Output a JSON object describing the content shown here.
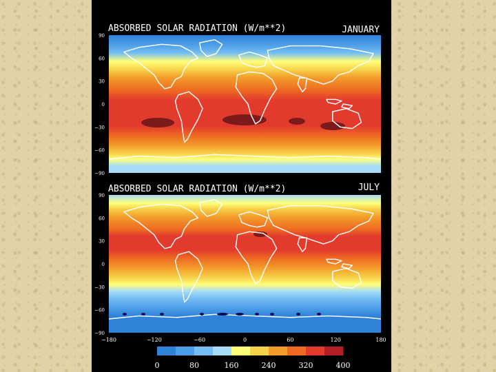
{
  "figure": {
    "panels": [
      {
        "title": "ABSORBED SOLAR RADIATION (W/m**2)",
        "month": "JANUARY"
      },
      {
        "title": "ABSORBED SOLAR RADIATION (W/m**2)",
        "month": "JULY"
      }
    ],
    "lat_ticks": [
      "90",
      "60",
      "30",
      "0",
      "−30",
      "−60",
      "−90"
    ],
    "lon_ticks": [
      "−180",
      "−120",
      "−60",
      "0",
      "60",
      "120",
      "180"
    ],
    "colorbar": {
      "colors": [
        "#2f82d8",
        "#4d9ee8",
        "#75bdf2",
        "#a6dcf7",
        "#ffff7a",
        "#f6d24a",
        "#f39c2a",
        "#ee6a22",
        "#e23b2e",
        "#b21f24"
      ],
      "labels": [
        "0",
        "80",
        "160",
        "240",
        "320",
        "400"
      ]
    }
  }
}
